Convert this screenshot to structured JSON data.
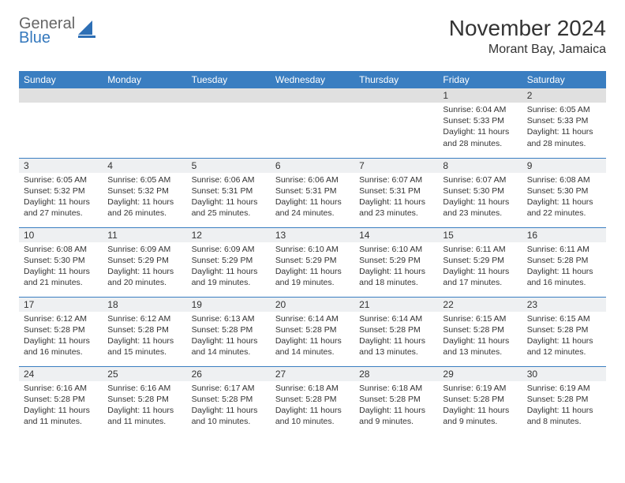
{
  "logo": {
    "line1": "General",
    "line2": "Blue",
    "color_general": "#666666",
    "color_blue": "#3478bd",
    "sail_color": "#2d6fb5"
  },
  "header": {
    "title": "November 2024",
    "location": "Morant Bay, Jamaica"
  },
  "styling": {
    "header_row_bg": "#3a7ec1",
    "header_row_fg": "#ffffff",
    "daynum_bg": "#eef0f2",
    "daynum_bg_first_row": "#e0e0e0",
    "row_border_color": "#3a7ec1",
    "body_text_color": "#333333",
    "page_bg": "#ffffff",
    "title_fontsize": 28,
    "location_fontsize": 16,
    "dayhead_fontsize": 12,
    "cell_fontsize": 10.5
  },
  "weekdays": [
    "Sunday",
    "Monday",
    "Tuesday",
    "Wednesday",
    "Thursday",
    "Friday",
    "Saturday"
  ],
  "weeks": [
    [
      null,
      null,
      null,
      null,
      null,
      {
        "n": "1",
        "sunrise": "6:04 AM",
        "sunset": "5:33 PM",
        "daylight": "11 hours and 28 minutes."
      },
      {
        "n": "2",
        "sunrise": "6:05 AM",
        "sunset": "5:33 PM",
        "daylight": "11 hours and 28 minutes."
      }
    ],
    [
      {
        "n": "3",
        "sunrise": "6:05 AM",
        "sunset": "5:32 PM",
        "daylight": "11 hours and 27 minutes."
      },
      {
        "n": "4",
        "sunrise": "6:05 AM",
        "sunset": "5:32 PM",
        "daylight": "11 hours and 26 minutes."
      },
      {
        "n": "5",
        "sunrise": "6:06 AM",
        "sunset": "5:31 PM",
        "daylight": "11 hours and 25 minutes."
      },
      {
        "n": "6",
        "sunrise": "6:06 AM",
        "sunset": "5:31 PM",
        "daylight": "11 hours and 24 minutes."
      },
      {
        "n": "7",
        "sunrise": "6:07 AM",
        "sunset": "5:31 PM",
        "daylight": "11 hours and 23 minutes."
      },
      {
        "n": "8",
        "sunrise": "6:07 AM",
        "sunset": "5:30 PM",
        "daylight": "11 hours and 23 minutes."
      },
      {
        "n": "9",
        "sunrise": "6:08 AM",
        "sunset": "5:30 PM",
        "daylight": "11 hours and 22 minutes."
      }
    ],
    [
      {
        "n": "10",
        "sunrise": "6:08 AM",
        "sunset": "5:30 PM",
        "daylight": "11 hours and 21 minutes."
      },
      {
        "n": "11",
        "sunrise": "6:09 AM",
        "sunset": "5:29 PM",
        "daylight": "11 hours and 20 minutes."
      },
      {
        "n": "12",
        "sunrise": "6:09 AM",
        "sunset": "5:29 PM",
        "daylight": "11 hours and 19 minutes."
      },
      {
        "n": "13",
        "sunrise": "6:10 AM",
        "sunset": "5:29 PM",
        "daylight": "11 hours and 19 minutes."
      },
      {
        "n": "14",
        "sunrise": "6:10 AM",
        "sunset": "5:29 PM",
        "daylight": "11 hours and 18 minutes."
      },
      {
        "n": "15",
        "sunrise": "6:11 AM",
        "sunset": "5:29 PM",
        "daylight": "11 hours and 17 minutes."
      },
      {
        "n": "16",
        "sunrise": "6:11 AM",
        "sunset": "5:28 PM",
        "daylight": "11 hours and 16 minutes."
      }
    ],
    [
      {
        "n": "17",
        "sunrise": "6:12 AM",
        "sunset": "5:28 PM",
        "daylight": "11 hours and 16 minutes."
      },
      {
        "n": "18",
        "sunrise": "6:12 AM",
        "sunset": "5:28 PM",
        "daylight": "11 hours and 15 minutes."
      },
      {
        "n": "19",
        "sunrise": "6:13 AM",
        "sunset": "5:28 PM",
        "daylight": "11 hours and 14 minutes."
      },
      {
        "n": "20",
        "sunrise": "6:14 AM",
        "sunset": "5:28 PM",
        "daylight": "11 hours and 14 minutes."
      },
      {
        "n": "21",
        "sunrise": "6:14 AM",
        "sunset": "5:28 PM",
        "daylight": "11 hours and 13 minutes."
      },
      {
        "n": "22",
        "sunrise": "6:15 AM",
        "sunset": "5:28 PM",
        "daylight": "11 hours and 13 minutes."
      },
      {
        "n": "23",
        "sunrise": "6:15 AM",
        "sunset": "5:28 PM",
        "daylight": "11 hours and 12 minutes."
      }
    ],
    [
      {
        "n": "24",
        "sunrise": "6:16 AM",
        "sunset": "5:28 PM",
        "daylight": "11 hours and 11 minutes."
      },
      {
        "n": "25",
        "sunrise": "6:16 AM",
        "sunset": "5:28 PM",
        "daylight": "11 hours and 11 minutes."
      },
      {
        "n": "26",
        "sunrise": "6:17 AM",
        "sunset": "5:28 PM",
        "daylight": "11 hours and 10 minutes."
      },
      {
        "n": "27",
        "sunrise": "6:18 AM",
        "sunset": "5:28 PM",
        "daylight": "11 hours and 10 minutes."
      },
      {
        "n": "28",
        "sunrise": "6:18 AM",
        "sunset": "5:28 PM",
        "daylight": "11 hours and 9 minutes."
      },
      {
        "n": "29",
        "sunrise": "6:19 AM",
        "sunset": "5:28 PM",
        "daylight": "11 hours and 9 minutes."
      },
      {
        "n": "30",
        "sunrise": "6:19 AM",
        "sunset": "5:28 PM",
        "daylight": "11 hours and 8 minutes."
      }
    ]
  ],
  "labels": {
    "sunrise": "Sunrise: ",
    "sunset": "Sunset: ",
    "daylight": "Daylight: "
  }
}
